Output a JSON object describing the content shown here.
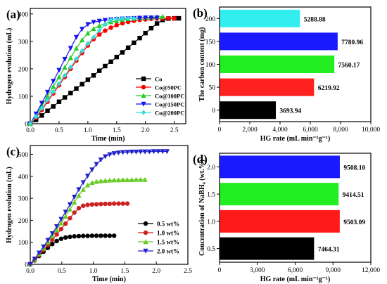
{
  "chart_data": [
    {
      "panel": "(a)",
      "type": "line",
      "xlabel": "Time (min)",
      "ylabel": "Hydrogen evolution (mL)",
      "xlim": [
        0,
        2.7
      ],
      "ylim": [
        0,
        420
      ],
      "xticks": [
        "0.0",
        "0.5",
        "1.0",
        "1.5",
        "2.0",
        "2.5"
      ],
      "xtick_values": [
        0,
        0.5,
        1.0,
        1.5,
        2.0,
        2.5
      ],
      "yticks": [
        "0",
        "100",
        "200",
        "300",
        "400"
      ],
      "ytick_values": [
        0,
        100,
        200,
        300,
        400
      ],
      "legend_position": "bottom-right",
      "series": [
        {
          "name": "Co",
          "color": "#000000",
          "marker": "square",
          "x": [
            0,
            0.1,
            0.2,
            0.3,
            0.4,
            0.5,
            0.6,
            0.7,
            0.8,
            0.9,
            1.0,
            1.1,
            1.2,
            1.3,
            1.4,
            1.5,
            1.6,
            1.7,
            1.8,
            1.9,
            2.0,
            2.1,
            2.2,
            2.3,
            2.4,
            2.5,
            2.58
          ],
          "y": [
            0,
            14,
            30,
            47,
            63,
            80,
            96,
            112,
            128,
            144,
            160,
            176,
            193,
            210,
            226,
            243,
            260,
            277,
            295,
            312,
            330,
            348,
            365,
            378,
            383,
            384,
            384
          ]
        },
        {
          "name": "Co@50PC",
          "color": "#ff0000",
          "marker": "circle",
          "x": [
            0,
            0.1,
            0.2,
            0.3,
            0.4,
            0.5,
            0.6,
            0.7,
            0.8,
            0.9,
            1.0,
            1.1,
            1.2,
            1.3,
            1.4,
            1.5,
            1.6,
            1.7,
            1.8,
            1.9,
            2.0,
            2.1,
            2.2,
            2.3,
            2.4,
            2.5
          ],
          "y": [
            0,
            22,
            50,
            80,
            110,
            140,
            170,
            200,
            230,
            258,
            285,
            308,
            325,
            339,
            350,
            359,
            366,
            371,
            375,
            378,
            380,
            382,
            383,
            384,
            384,
            384
          ]
        },
        {
          "name": "Co@100PC",
          "color": "#22cc22",
          "marker": "triangle-up",
          "x": [
            0,
            0.1,
            0.2,
            0.3,
            0.4,
            0.5,
            0.6,
            0.7,
            0.8,
            0.9,
            1.0,
            1.1,
            1.2,
            1.3,
            1.4,
            1.5,
            1.6,
            1.7,
            1.8,
            1.9,
            2.0,
            2.1,
            2.2,
            2.3
          ],
          "y": [
            0,
            30,
            65,
            100,
            135,
            170,
            205,
            240,
            275,
            305,
            330,
            346,
            357,
            365,
            371,
            375,
            379,
            382,
            384,
            386,
            387,
            388,
            389,
            390
          ]
        },
        {
          "name": "Co@150PC",
          "color": "#1515ee",
          "marker": "triangle-down",
          "x": [
            0,
            0.1,
            0.2,
            0.3,
            0.4,
            0.5,
            0.6,
            0.7,
            0.8,
            0.9,
            1.0,
            1.1,
            1.2,
            1.3,
            1.4,
            1.5,
            1.6,
            1.7,
            1.8,
            1.9,
            2.0,
            2.1,
            2.2
          ],
          "y": [
            0,
            36,
            75,
            115,
            155,
            195,
            235,
            275,
            315,
            345,
            362,
            370,
            374,
            377,
            379,
            381,
            382,
            383,
            384,
            385,
            386,
            386,
            386
          ]
        },
        {
          "name": "Co@200PC",
          "color": "#33dddd",
          "marker": "diamond",
          "x": [
            0,
            0.1,
            0.2,
            0.3,
            0.4,
            0.5,
            0.6,
            0.7,
            0.8,
            0.9,
            1.0,
            1.1,
            1.2,
            1.3,
            1.4,
            1.5,
            1.6,
            1.7,
            1.8
          ],
          "y": [
            0,
            26,
            56,
            86,
            116,
            146,
            176,
            206,
            236,
            265,
            292,
            315,
            340,
            362,
            378,
            382,
            383,
            384,
            384
          ]
        }
      ]
    },
    {
      "panel": "(b)",
      "type": "bar",
      "orientation": "horizontal",
      "xlabel": "HG rate (mL min⁻¹g⁻¹)",
      "ylabel": "The carbon content (mg)",
      "xlim": [
        0,
        10000
      ],
      "xticks": [
        "0",
        "2,000",
        "4,000",
        "6,000",
        "8,000",
        "10,000"
      ],
      "xtick_values": [
        0,
        2000,
        4000,
        6000,
        8000,
        10000
      ],
      "categories": [
        "0",
        "50",
        "100",
        "150",
        "200"
      ],
      "values": [
        3693.94,
        6219.92,
        7560.17,
        7780.96,
        5288.88
      ],
      "value_labels": [
        "3693.94",
        "6219.92",
        "7560.17",
        "7780.96",
        "5288.88"
      ],
      "colors": [
        "#000000",
        "#ff2020",
        "#22ee22",
        "#1a1aff",
        "#33eeee"
      ]
    },
    {
      "panel": "(c)",
      "type": "line",
      "xlabel": "Time (min)",
      "ylabel": "Hydrogen evolution (mL)",
      "xlim": [
        0,
        2.5
      ],
      "ylim": [
        0,
        540
      ],
      "xticks": [
        "0.0",
        "0.5",
        "1.0",
        "1.5",
        "2.0",
        "2.5"
      ],
      "xtick_values": [
        0,
        0.5,
        1.0,
        1.5,
        2.0,
        2.5
      ],
      "yticks": [
        "0",
        "100",
        "200",
        "300",
        "400",
        "500"
      ],
      "ytick_values": [
        0,
        100,
        200,
        300,
        400,
        500
      ],
      "legend_position": "bottom-right",
      "series": [
        {
          "name": "0.5 wt%",
          "color": "#000000",
          "marker": "circle",
          "x": [
            0,
            0.07,
            0.14,
            0.21,
            0.28,
            0.35,
            0.42,
            0.49,
            0.56,
            0.63,
            0.7,
            0.77,
            0.84,
            0.91,
            0.98,
            1.05,
            1.12,
            1.19,
            1.26,
            1.33
          ],
          "y": [
            0,
            18,
            38,
            57,
            75,
            92,
            106,
            116,
            122,
            125,
            127,
            128,
            129,
            129,
            130,
            130,
            130,
            130,
            130,
            130
          ]
        },
        {
          "name": "1.0 wt%",
          "color": "#cc2222",
          "marker": "circle",
          "x": [
            0,
            0.07,
            0.14,
            0.21,
            0.28,
            0.35,
            0.42,
            0.49,
            0.56,
            0.63,
            0.7,
            0.77,
            0.84,
            0.91,
            0.98,
            1.05,
            1.12,
            1.19,
            1.26,
            1.33,
            1.4,
            1.47,
            1.54
          ],
          "y": [
            0,
            20,
            42,
            65,
            88,
            112,
            136,
            160,
            185,
            210,
            235,
            255,
            266,
            270,
            272,
            273,
            274,
            275,
            275,
            276,
            276,
            276,
            276
          ]
        },
        {
          "name": "1.5 wt%",
          "color": "#66cc22",
          "marker": "triangle-up",
          "x": [
            0,
            0.07,
            0.14,
            0.21,
            0.28,
            0.35,
            0.42,
            0.49,
            0.56,
            0.63,
            0.7,
            0.77,
            0.84,
            0.91,
            0.98,
            1.05,
            1.12,
            1.19,
            1.26,
            1.33,
            1.4,
            1.47,
            1.54,
            1.61,
            1.68,
            1.75,
            1.82
          ],
          "y": [
            0,
            22,
            47,
            73,
            100,
            128,
            157,
            187,
            218,
            250,
            282,
            312,
            340,
            360,
            371,
            376,
            379,
            381,
            382,
            383,
            383,
            384,
            384,
            384,
            385,
            385,
            385
          ]
        },
        {
          "name": "2.0 wt%",
          "color": "#2222cc",
          "marker": "triangle-down",
          "x": [
            0,
            0.07,
            0.14,
            0.21,
            0.28,
            0.35,
            0.42,
            0.49,
            0.56,
            0.63,
            0.7,
            0.77,
            0.84,
            0.91,
            0.98,
            1.05,
            1.12,
            1.19,
            1.26,
            1.33,
            1.4,
            1.47,
            1.54,
            1.61,
            1.68,
            1.75,
            1.82,
            1.89,
            1.96,
            2.03,
            2.1,
            2.17
          ],
          "y": [
            0,
            25,
            52,
            80,
            110,
            140,
            172,
            205,
            238,
            272,
            306,
            340,
            372,
            402,
            430,
            455,
            475,
            490,
            499,
            504,
            507,
            509,
            510,
            511,
            511,
            512,
            512,
            512,
            513,
            513,
            513,
            513
          ]
        }
      ]
    },
    {
      "panel": "(d)",
      "type": "bar",
      "orientation": "horizontal",
      "xlabel": "HG rate (mL min⁻¹g⁻¹)",
      "ylabel": "Concentration of NaBH₄ (wt.%)",
      "xlim": [
        0,
        12000
      ],
      "xticks": [
        "0",
        "3,000",
        "6,000",
        "9,000",
        "12,000"
      ],
      "xtick_values": [
        0,
        3000,
        6000,
        9000,
        12000
      ],
      "categories": [
        "0.5",
        "1.0",
        "1.5",
        "2.0"
      ],
      "values": [
        7464.31,
        9503.09,
        9414.51,
        9508.1
      ],
      "value_labels": [
        "7464.31",
        "9503.09",
        "9414.51",
        "9508.10"
      ],
      "colors": [
        "#000000",
        "#ff1a1a",
        "#22ee22",
        "#1a1aff"
      ]
    }
  ]
}
